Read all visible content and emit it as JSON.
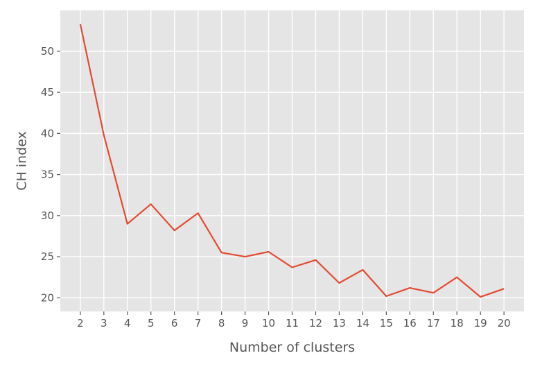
{
  "chart_data": {
    "type": "line",
    "title": "",
    "xlabel": "Number of clusters",
    "ylabel": "CH index",
    "x": [
      2,
      3,
      4,
      5,
      6,
      7,
      8,
      9,
      10,
      11,
      12,
      13,
      14,
      15,
      16,
      17,
      18,
      19,
      20
    ],
    "series": [
      {
        "values": [
          53.3,
          39.8,
          29.0,
          31.4,
          28.2,
          30.3,
          25.5,
          25.0,
          25.6,
          23.7,
          24.6,
          21.8,
          23.4,
          20.2,
          21.2,
          20.6,
          22.5,
          20.1,
          21.1
        ],
        "color": "#E24A33"
      }
    ],
    "x_ticks": [
      "2",
      "3",
      "4",
      "5",
      "6",
      "7",
      "8",
      "9",
      "10",
      "11",
      "12",
      "13",
      "14",
      "15",
      "16",
      "17",
      "18",
      "19",
      "20"
    ],
    "y_ticks": [
      "20",
      "25",
      "30",
      "35",
      "40",
      "45",
      "50"
    ],
    "xlim": [
      1.15,
      20.85
    ],
    "ylim": [
      18.34,
      54.97
    ],
    "grid": true,
    "style": {
      "plot_background": "#E5E5E5",
      "grid_color": "#FFFFFF",
      "text_color": "#555555"
    }
  }
}
